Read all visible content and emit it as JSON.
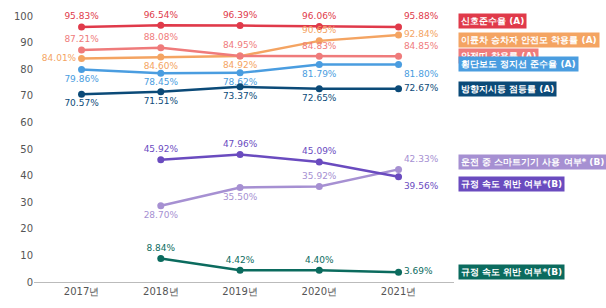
{
  "chart_data": {
    "type": "line",
    "categories": [
      "2017년",
      "2018년",
      "2019년",
      "2020년",
      "2021년"
    ],
    "ylim": [
      0,
      100
    ],
    "yticks": [
      0,
      10,
      20,
      30,
      40,
      50,
      60,
      70,
      80,
      90,
      100
    ],
    "grid": false,
    "data_labels": true,
    "marker": "circle",
    "series": [
      {
        "name": "신호준수율 (A)",
        "color": "#e03a4a",
        "values": [
          95.83,
          96.54,
          96.39,
          96.06,
          95.88
        ],
        "value_labels": [
          "95.83%",
          "96.54%",
          "96.39%",
          "96.06%",
          "95.88%"
        ]
      },
      {
        "name": "이륜차 승차자 안전모 착용률 (A)",
        "color": "#f4a462",
        "values": [
          84.01,
          84.6,
          84.92,
          90.65,
          92.84
        ],
        "value_labels": [
          "84.01%",
          "84.60%",
          "84.92%",
          "90.65%",
          "92.84%"
        ]
      },
      {
        "name": "안전띠 착용률 (A)",
        "color": "#ef7b7b",
        "values": [
          87.21,
          88.08,
          84.95,
          84.83,
          84.85
        ],
        "value_labels": [
          "87.21%",
          "88.08%",
          "84.95%",
          "84.83%",
          "84.85%"
        ]
      },
      {
        "name": "횡단보도 정지선 준수율 (A)",
        "color": "#4a9de0",
        "values": [
          79.86,
          78.45,
          78.62,
          81.79,
          81.8
        ],
        "value_labels": [
          "79.86%",
          "78.45%",
          "78.62%",
          "81.79%",
          "81.80%"
        ]
      },
      {
        "name": "방향지시등 점등률 (A)",
        "color": "#0b4a78",
        "values": [
          70.57,
          71.51,
          73.37,
          72.65,
          72.67
        ],
        "value_labels": [
          "70.57%",
          "71.51%",
          "73.37%",
          "72.65%",
          "72.67%"
        ]
      },
      {
        "name": "운전 중 스마트기기 사용 여부* (B)",
        "color": "#a690d2",
        "values": [
          null,
          28.7,
          35.5,
          35.92,
          42.33
        ],
        "value_labels": [
          null,
          "28.70%",
          "35.50%",
          "35.92%",
          "42.33%"
        ]
      },
      {
        "name": "규정 속도 위반 여부*(B)",
        "color": "#6a4bbf",
        "values": [
          null,
          45.92,
          47.96,
          45.09,
          39.56
        ],
        "value_labels": [
          null,
          "45.92%",
          "47.96%",
          "45.09%",
          "39.56%"
        ]
      },
      {
        "name": "규정 속도 위반 여부*(B)",
        "color": "#0b6b5e",
        "values": [
          null,
          8.84,
          4.42,
          4.4,
          3.69
        ],
        "value_labels": [
          null,
          "8.84%",
          "4.42%",
          "4.40%",
          "3.69%"
        ]
      }
    ]
  }
}
